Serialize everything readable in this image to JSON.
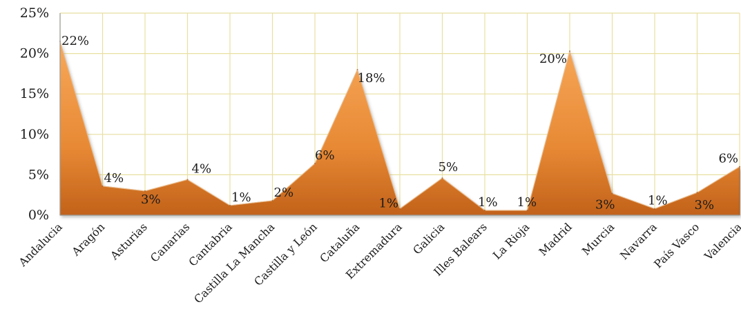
{
  "chart_data": {
    "type": "area",
    "title": "",
    "xlabel": "",
    "ylabel": "",
    "ylim": [
      0,
      25
    ],
    "yticks": [
      "0%",
      "5%",
      "10%",
      "15%",
      "20%",
      "25%"
    ],
    "ytick_values": [
      0,
      5,
      10,
      15,
      20,
      25
    ],
    "grid": true,
    "legend": "none",
    "categories": [
      "Andalucia",
      "Aragón",
      "Asturias",
      "Canarias",
      "Cantabria",
      "Castilla La Mancha",
      "Castilla y León",
      "Cataluña",
      "Extremadura",
      "Galicia",
      "Illes Balears",
      "La Rioja",
      "Madrid",
      "Murcia",
      "Navarra",
      "País Vasco",
      "Valencia"
    ],
    "values": [
      21.5,
      3.6,
      3.0,
      4.4,
      1.2,
      1.8,
      6.4,
      18.0,
      0.8,
      4.6,
      0.6,
      0.6,
      20.3,
      2.7,
      0.8,
      2.8,
      6.0
    ],
    "data_labels": [
      "22%",
      "4%",
      "3%",
      "4%",
      "1%",
      "2%",
      "6%",
      "18%",
      "1%",
      "5%",
      "1%",
      "1%",
      "20%",
      "3%",
      "1%",
      "3%",
      "6%"
    ],
    "colors": {
      "fill_light": "#f5a04a",
      "fill_dark": "#c2621a",
      "edge": "#8a4510",
      "grid": "#e8dfa0",
      "axis": "#9a9a9a"
    }
  }
}
